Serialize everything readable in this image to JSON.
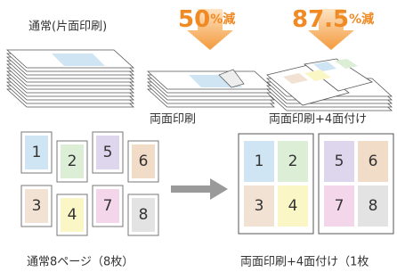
{
  "labels": {
    "normal": "通常(片面印刷)",
    "duplex": "両面印刷",
    "duplex_4up": "両面印刷+4面付け",
    "normal_pages": "通常8ページ（8枚）",
    "duplex_4up_sheet": "両面印刷+4面付け（1枚"
  },
  "reductions": [
    {
      "value": "50",
      "unit": "%減"
    },
    {
      "value": "87.5",
      "unit": "%減"
    }
  ],
  "pages": [
    {
      "label": "1",
      "color": "#cfe5f3"
    },
    {
      "label": "2",
      "color": "#dcefd6"
    },
    {
      "label": "5",
      "color": "#ddd6ec"
    },
    {
      "label": "6",
      "color": "#f1dcc7"
    },
    {
      "label": "3",
      "color": "#f2e2d3"
    },
    {
      "label": "4",
      "color": "#fbf6c6"
    },
    {
      "label": "7",
      "color": "#f4d6ea"
    },
    {
      "label": "8",
      "color": "#e3e3e3"
    }
  ],
  "sheet_pages": [
    {
      "label": "1",
      "color": "#cfe5f3"
    },
    {
      "label": "2",
      "color": "#dcefd6"
    },
    {
      "label": "3",
      "color": "#f2e2d3"
    },
    {
      "label": "4",
      "color": "#fbf6c6"
    },
    {
      "label": "5",
      "color": "#ddd6ec"
    },
    {
      "label": "6",
      "color": "#f1dcc7"
    },
    {
      "label": "7",
      "color": "#f4d6ea"
    },
    {
      "label": "8",
      "color": "#e3e3e3"
    }
  ]
}
